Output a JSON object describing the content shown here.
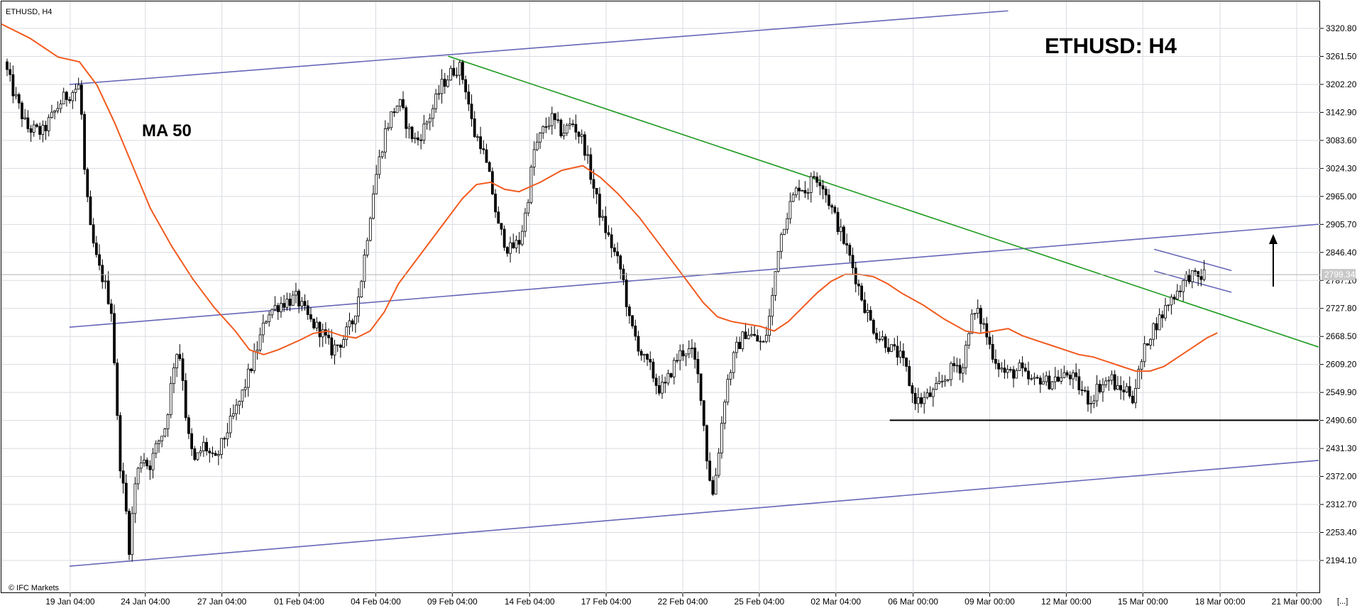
{
  "chart_data": {
    "type": "candlestick",
    "symbol_label": "ETHUSD, H4",
    "title": "ETHUSD: H4",
    "ma_label": "MA 50",
    "watermark": "© IFC Markets",
    "corner_marker": "[...]",
    "current_price": "2799.34",
    "ylim": [
      2150,
      3360
    ],
    "yticks": [
      "3320.80",
      "3261.50",
      "3202.20",
      "3142.90",
      "3083.60",
      "3024.30",
      "2965.00",
      "2905.70",
      "2846.40",
      "2787.10",
      "2727.80",
      "2668.50",
      "2609.20",
      "2549.90",
      "2490.60",
      "2431.30",
      "2372.00",
      "2312.70",
      "2253.40",
      "2194.10"
    ],
    "xlim": [
      0,
      1860
    ],
    "xticks": [
      {
        "label": "19 Jan 04:00",
        "x": 97
      },
      {
        "label": "24 Jan 04:00",
        "x": 203
      },
      {
        "label": "27 Jan 04:00",
        "x": 311
      },
      {
        "label": "01 Feb 04:00",
        "x": 420
      },
      {
        "label": "04 Feb 04:00",
        "x": 528
      },
      {
        "label": "09 Feb 04:00",
        "x": 636
      },
      {
        "label": "14 Feb 04:00",
        "x": 745
      },
      {
        "label": "17 Feb 04:00",
        "x": 853
      },
      {
        "label": "22 Feb 04:00",
        "x": 961
      },
      {
        "label": "25 Feb 04:00",
        "x": 1069
      },
      {
        "label": "02 Mar 04:00",
        "x": 1177
      },
      {
        "label": "06 Mar 00:00",
        "x": 1286
      },
      {
        "label": "09 Mar 00:00",
        "x": 1394
      },
      {
        "label": "12 Mar 00:00",
        "x": 1502
      },
      {
        "label": "15 Mar 00:00",
        "x": 1610
      },
      {
        "label": "18 Mar 00:00",
        "x": 1719
      },
      {
        "label": "21 Mar 00:00",
        "x": 1827
      }
    ],
    "candle_anchors": [
      [
        8,
        3250
      ],
      [
        20,
        3190
      ],
      [
        40,
        3110
      ],
      [
        62,
        3100
      ],
      [
        90,
        3170
      ],
      [
        115,
        3200
      ],
      [
        122,
        3000
      ],
      [
        130,
        2890
      ],
      [
        140,
        2820
      ],
      [
        150,
        2780
      ],
      [
        160,
        2720
      ],
      [
        170,
        2420
      ],
      [
        180,
        2300
      ],
      [
        184,
        2215
      ],
      [
        193,
        2360
      ],
      [
        203,
        2420
      ],
      [
        212,
        2390
      ],
      [
        224,
        2440
      ],
      [
        236,
        2480
      ],
      [
        250,
        2640
      ],
      [
        258,
        2620
      ],
      [
        266,
        2470
      ],
      [
        276,
        2400
      ],
      [
        290,
        2440
      ],
      [
        305,
        2400
      ],
      [
        320,
        2460
      ],
      [
        340,
        2530
      ],
      [
        360,
        2620
      ],
      [
        380,
        2720
      ],
      [
        400,
        2740
      ],
      [
        420,
        2750
      ],
      [
        440,
        2700
      ],
      [
        455,
        2680
      ],
      [
        470,
        2640
      ],
      [
        485,
        2660
      ],
      [
        500,
        2700
      ],
      [
        510,
        2770
      ],
      [
        520,
        2880
      ],
      [
        530,
        2990
      ],
      [
        545,
        3100
      ],
      [
        555,
        3140
      ],
      [
        565,
        3165
      ],
      [
        580,
        3100
      ],
      [
        590,
        3080
      ],
      [
        610,
        3140
      ],
      [
        625,
        3200
      ],
      [
        640,
        3230
      ],
      [
        650,
        3240
      ],
      [
        660,
        3190
      ],
      [
        670,
        3100
      ],
      [
        680,
        3080
      ],
      [
        695,
        2990
      ],
      [
        705,
        2900
      ],
      [
        720,
        2850
      ],
      [
        735,
        2870
      ],
      [
        745,
        2940
      ],
      [
        755,
        3060
      ],
      [
        770,
        3110
      ],
      [
        780,
        3130
      ],
      [
        795,
        3100
      ],
      [
        810,
        3120
      ],
      [
        825,
        3080
      ],
      [
        840,
        2980
      ],
      [
        850,
        2920
      ],
      [
        860,
        2880
      ],
      [
        870,
        2840
      ],
      [
        880,
        2800
      ],
      [
        890,
        2700
      ],
      [
        900,
        2660
      ],
      [
        910,
        2620
      ],
      [
        920,
        2600
      ],
      [
        930,
        2560
      ],
      [
        940,
        2560
      ],
      [
        950,
        2600
      ],
      [
        960,
        2630
      ],
      [
        970,
        2640
      ],
      [
        980,
        2630
      ],
      [
        990,
        2560
      ],
      [
        1000,
        2400
      ],
      [
        1008,
        2330
      ],
      [
        1016,
        2430
      ],
      [
        1026,
        2560
      ],
      [
        1040,
        2640
      ],
      [
        1055,
        2680
      ],
      [
        1070,
        2660
      ],
      [
        1080,
        2650
      ],
      [
        1090,
        2730
      ],
      [
        1100,
        2860
      ],
      [
        1110,
        2920
      ],
      [
        1120,
        2960
      ],
      [
        1130,
        2990
      ],
      [
        1140,
        2975
      ],
      [
        1150,
        3010
      ],
      [
        1160,
        3000
      ],
      [
        1170,
        2960
      ],
      [
        1180,
        2920
      ],
      [
        1190,
        2880
      ],
      [
        1200,
        2840
      ],
      [
        1210,
        2790
      ],
      [
        1220,
        2740
      ],
      [
        1230,
        2700
      ],
      [
        1240,
        2670
      ],
      [
        1250,
        2660
      ],
      [
        1260,
        2640
      ],
      [
        1270,
        2630
      ],
      [
        1280,
        2600
      ],
      [
        1290,
        2540
      ],
      [
        1300,
        2530
      ],
      [
        1310,
        2540
      ],
      [
        1320,
        2550
      ],
      [
        1330,
        2570
      ],
      [
        1340,
        2590
      ],
      [
        1350,
        2610
      ],
      [
        1360,
        2600
      ],
      [
        1370,
        2700
      ],
      [
        1380,
        2720
      ],
      [
        1390,
        2690
      ],
      [
        1400,
        2640
      ],
      [
        1410,
        2610
      ],
      [
        1420,
        2590
      ],
      [
        1430,
        2590
      ],
      [
        1440,
        2600
      ],
      [
        1450,
        2580
      ],
      [
        1460,
        2570
      ],
      [
        1470,
        2580
      ],
      [
        1480,
        2570
      ],
      [
        1490,
        2580
      ],
      [
        1500,
        2580
      ],
      [
        1510,
        2590
      ],
      [
        1520,
        2570
      ],
      [
        1530,
        2550
      ],
      [
        1540,
        2530
      ],
      [
        1550,
        2560
      ],
      [
        1560,
        2570
      ],
      [
        1570,
        2580
      ],
      [
        1580,
        2550
      ],
      [
        1590,
        2560
      ],
      [
        1600,
        2540
      ],
      [
        1610,
        2600
      ],
      [
        1620,
        2660
      ],
      [
        1630,
        2690
      ],
      [
        1640,
        2710
      ],
      [
        1650,
        2740
      ],
      [
        1660,
        2760
      ],
      [
        1670,
        2780
      ],
      [
        1680,
        2800
      ],
      [
        1690,
        2790
      ],
      [
        1700,
        2800
      ]
    ],
    "ma50": [
      [
        0,
        3330
      ],
      [
        40,
        3300
      ],
      [
        80,
        3260
      ],
      [
        110,
        3250
      ],
      [
        135,
        3200
      ],
      [
        160,
        3120
      ],
      [
        185,
        3030
      ],
      [
        210,
        2940
      ],
      [
        240,
        2860
      ],
      [
        270,
        2790
      ],
      [
        300,
        2730
      ],
      [
        330,
        2680
      ],
      [
        350,
        2640
      ],
      [
        370,
        2630
      ],
      [
        390,
        2640
      ],
      [
        420,
        2660
      ],
      [
        440,
        2675
      ],
      [
        460,
        2680
      ],
      [
        480,
        2670
      ],
      [
        500,
        2665
      ],
      [
        520,
        2680
      ],
      [
        540,
        2720
      ],
      [
        560,
        2780
      ],
      [
        590,
        2840
      ],
      [
        620,
        2900
      ],
      [
        650,
        2960
      ],
      [
        670,
        2990
      ],
      [
        690,
        2995
      ],
      [
        710,
        2980
      ],
      [
        730,
        2975
      ],
      [
        760,
        2995
      ],
      [
        790,
        3020
      ],
      [
        820,
        3030
      ],
      [
        845,
        3005
      ],
      [
        870,
        2970
      ],
      [
        900,
        2920
      ],
      [
        930,
        2860
      ],
      [
        960,
        2800
      ],
      [
        990,
        2740
      ],
      [
        1010,
        2710
      ],
      [
        1030,
        2700
      ],
      [
        1050,
        2695
      ],
      [
        1070,
        2690
      ],
      [
        1090,
        2680
      ],
      [
        1110,
        2700
      ],
      [
        1130,
        2730
      ],
      [
        1150,
        2760
      ],
      [
        1170,
        2785
      ],
      [
        1190,
        2800
      ],
      [
        1210,
        2800
      ],
      [
        1230,
        2795
      ],
      [
        1250,
        2780
      ],
      [
        1270,
        2760
      ],
      [
        1300,
        2735
      ],
      [
        1330,
        2705
      ],
      [
        1360,
        2680
      ],
      [
        1380,
        2675
      ],
      [
        1400,
        2680
      ],
      [
        1420,
        2685
      ],
      [
        1440,
        2670
      ],
      [
        1460,
        2660
      ],
      [
        1480,
        2650
      ],
      [
        1500,
        2640
      ],
      [
        1520,
        2630
      ],
      [
        1540,
        2625
      ],
      [
        1560,
        2615
      ],
      [
        1580,
        2605
      ],
      [
        1600,
        2595
      ],
      [
        1620,
        2595
      ],
      [
        1640,
        2605
      ],
      [
        1660,
        2625
      ],
      [
        1680,
        2645
      ],
      [
        1700,
        2665
      ],
      [
        1715,
        2676
      ]
    ],
    "trendlines": [
      {
        "color": "#6666b8",
        "points": [
          [
            96,
            3202
          ],
          [
            1420,
            3358
          ]
        ]
      },
      {
        "color": "#6666b8",
        "points": [
          [
            96,
            2688
          ],
          [
            1858,
            2906
          ]
        ]
      },
      {
        "color": "#6666b8",
        "points": [
          [
            96,
            2182
          ],
          [
            1858,
            2406
          ]
        ]
      },
      {
        "color": "#1e9a1e",
        "points": [
          [
            630,
            3262
          ],
          [
            1858,
            2646
          ]
        ]
      },
      {
        "color": "#000000",
        "points": [
          [
            1253,
            2491
          ],
          [
            1858,
            2491
          ]
        ]
      },
      {
        "color": "#6666b8",
        "points": [
          [
            1626,
            2807
          ],
          [
            1735,
            2762
          ]
        ]
      },
      {
        "color": "#6666b8",
        "points": [
          [
            1626,
            2853
          ],
          [
            1735,
            2808
          ]
        ]
      }
    ],
    "colors": {
      "up": "#ffffff",
      "down": "#000000",
      "wick": "#000000",
      "ma": "#f25a1e",
      "grid": "#d8dbe2"
    }
  }
}
